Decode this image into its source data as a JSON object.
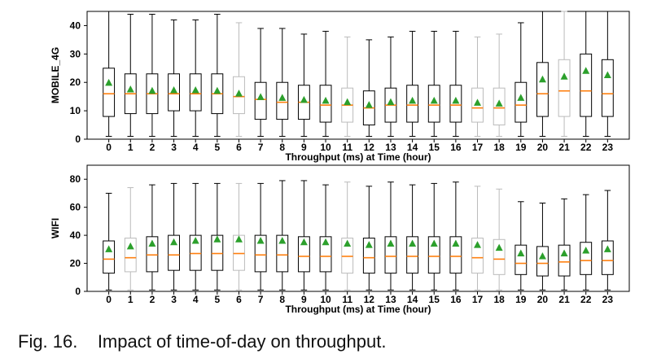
{
  "caption": "Fig. 16.    Impact of time-of-day on throughput.",
  "style": {
    "mean_color": "#2ca02c",
    "median_color": "#ff7f0e",
    "box_color": "#000000",
    "light_box_color": "#bbbbbb"
  },
  "chart_data": [
    {
      "type": "box",
      "categories": [
        "0",
        "1",
        "2",
        "3",
        "4",
        "5",
        "6",
        "7",
        "8",
        "9",
        "10",
        "11",
        "12",
        "13",
        "14",
        "15",
        "16",
        "17",
        "18",
        "19",
        "20",
        "21",
        "22",
        "23"
      ],
      "xlabel": "Throughput (ms) at Time (hour)",
      "ylabel": "MOBILE_4G",
      "ylim": [
        0,
        45
      ],
      "yticks": [
        0,
        10,
        20,
        30,
        40
      ],
      "series": [
        {
          "whisker_low": [
            1,
            1,
            1,
            1,
            1,
            1,
            1,
            1,
            1,
            1,
            1,
            1,
            1,
            1,
            1,
            1,
            1,
            1,
            1,
            1,
            1,
            1,
            1,
            1
          ],
          "q1": [
            8,
            9,
            9,
            10,
            10,
            9,
            9,
            7,
            7,
            7,
            6,
            6,
            5,
            6,
            6,
            6,
            6,
            6,
            5,
            6,
            8,
            8,
            8,
            8
          ],
          "median": [
            16,
            16,
            16,
            16,
            16,
            16,
            15,
            14,
            13,
            13,
            12,
            12,
            11,
            12,
            12,
            12,
            12,
            11,
            11,
            12,
            16,
            17,
            17,
            16
          ],
          "q3": [
            25,
            23,
            23,
            23,
            23,
            23,
            22,
            20,
            20,
            19,
            19,
            18,
            17,
            18,
            19,
            19,
            19,
            18,
            18,
            20,
            27,
            28,
            30,
            28
          ],
          "whisker_high": [
            45,
            44,
            44,
            42,
            42,
            44,
            41,
            39,
            39,
            37,
            38,
            36,
            35,
            36,
            38,
            38,
            38,
            36,
            37,
            41,
            45,
            45,
            45,
            45
          ],
          "mean": [
            19.8,
            17.5,
            17.0,
            17.2,
            17.2,
            17.0,
            16.0,
            14.8,
            14.5,
            13.8,
            13.5,
            13.0,
            12.0,
            13.0,
            13.5,
            13.5,
            13.5,
            12.8,
            12.5,
            14.5,
            21.0,
            22.0,
            24.0,
            22.5
          ],
          "light": [
            false,
            false,
            false,
            false,
            false,
            false,
            true,
            false,
            false,
            false,
            false,
            true,
            false,
            false,
            false,
            false,
            false,
            true,
            true,
            false,
            false,
            true,
            false,
            false
          ]
        }
      ]
    },
    {
      "type": "box",
      "categories": [
        "0",
        "1",
        "2",
        "3",
        "4",
        "5",
        "6",
        "7",
        "8",
        "9",
        "10",
        "11",
        "12",
        "13",
        "14",
        "15",
        "16",
        "17",
        "18",
        "19",
        "20",
        "21",
        "22",
        "23"
      ],
      "xlabel": "Throughput (ms) at Time (hour)",
      "ylabel": "WIFI",
      "ylim": [
        0,
        90
      ],
      "yticks": [
        0,
        20,
        40,
        60,
        80
      ],
      "series": [
        {
          "whisker_low": [
            1,
            1,
            1,
            1,
            1,
            1,
            1,
            1,
            1,
            1,
            1,
            1,
            1,
            1,
            1,
            1,
            1,
            1,
            1,
            1,
            1,
            1,
            1,
            1
          ],
          "q1": [
            13,
            14,
            14,
            15,
            15,
            15,
            15,
            14,
            14,
            14,
            14,
            13,
            13,
            13,
            13,
            13,
            13,
            13,
            12,
            12,
            11,
            11,
            12,
            12
          ],
          "median": [
            23,
            24,
            26,
            26,
            27,
            27,
            27,
            26,
            26,
            25,
            25,
            25,
            24,
            25,
            25,
            25,
            25,
            24,
            23,
            20,
            20,
            21,
            22,
            22
          ],
          "q3": [
            36,
            38,
            39,
            40,
            40,
            40,
            40,
            40,
            40,
            39,
            39,
            38,
            38,
            39,
            39,
            39,
            39,
            38,
            37,
            33,
            32,
            33,
            35,
            36
          ],
          "whisker_high": [
            70,
            74,
            76,
            77,
            77,
            77,
            77,
            77,
            79,
            79,
            76,
            78,
            75,
            78,
            76,
            77,
            78,
            75,
            73,
            64,
            63,
            66,
            69,
            72
          ],
          "mean": [
            30,
            32,
            34,
            35,
            36,
            37,
            37,
            36,
            36,
            35,
            35,
            34,
            33,
            34,
            34,
            34,
            34,
            33,
            31,
            27,
            25,
            27,
            29,
            30
          ],
          "light": [
            false,
            true,
            false,
            false,
            false,
            false,
            true,
            false,
            false,
            false,
            false,
            true,
            false,
            false,
            false,
            false,
            false,
            true,
            true,
            false,
            false,
            false,
            false,
            false
          ]
        }
      ]
    }
  ]
}
